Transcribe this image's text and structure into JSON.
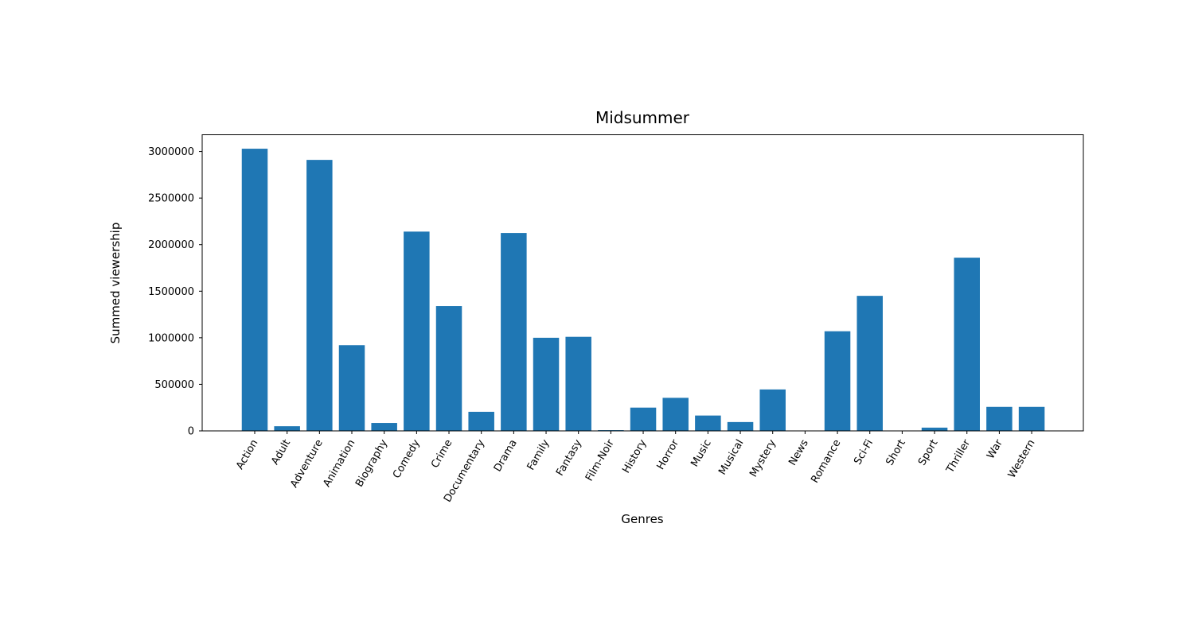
{
  "chart_data": {
    "type": "bar",
    "title": "Midsummer",
    "xlabel": "Genres",
    "ylabel": "Summed viewership",
    "categories": [
      "Action",
      "Adult",
      "Adventure",
      "Animation",
      "Biography",
      "Comedy",
      "Crime",
      "Documentary",
      "Drama",
      "Family",
      "Fantasy",
      "Film-Noir",
      "History",
      "Horror",
      "Music",
      "Musical",
      "Mystery",
      "News",
      "Romance",
      "Sci-Fi",
      "Short",
      "Sport",
      "Thriller",
      "War",
      "Western"
    ],
    "values": [
      3030000,
      50000,
      2910000,
      920000,
      85000,
      2140000,
      1340000,
      205000,
      2125000,
      1000000,
      1010000,
      8000,
      250000,
      355000,
      165000,
      95000,
      445000,
      0,
      1070000,
      1450000,
      0,
      35000,
      1860000,
      258000,
      258000
    ],
    "ylim": [
      0,
      3180000
    ],
    "yticks": [
      0,
      500000,
      1000000,
      1500000,
      2000000,
      2500000,
      3000000
    ],
    "ytick_labels": [
      "0",
      "500000",
      "1000000",
      "1500000",
      "2000000",
      "2500000",
      "3000000"
    ],
    "bar_color": "#1f77b4",
    "grid": false,
    "legend": false
  }
}
